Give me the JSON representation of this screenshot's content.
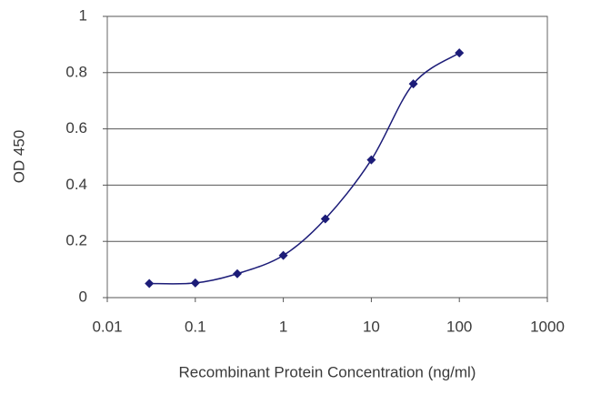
{
  "chart_data": {
    "type": "line",
    "xlabel": "Recombinant Protein Concentration (ng/ml)",
    "ylabel": "OD 450",
    "x": [
      0.03,
      0.1,
      0.3,
      1,
      3,
      10,
      30,
      100
    ],
    "values": [
      0.05,
      0.052,
      0.085,
      0.15,
      0.28,
      0.49,
      0.76,
      0.87
    ],
    "color": "#1c1c78",
    "xlim": [
      0.01,
      1000
    ],
    "xticks": [
      0.01,
      0.1,
      1,
      10,
      100,
      1000
    ],
    "xscale": "log",
    "ylim": [
      0,
      1
    ],
    "yticks": [
      0,
      0.2,
      0.4,
      0.6,
      0.8,
      1
    ],
    "grid": true,
    "smooth": true
  }
}
